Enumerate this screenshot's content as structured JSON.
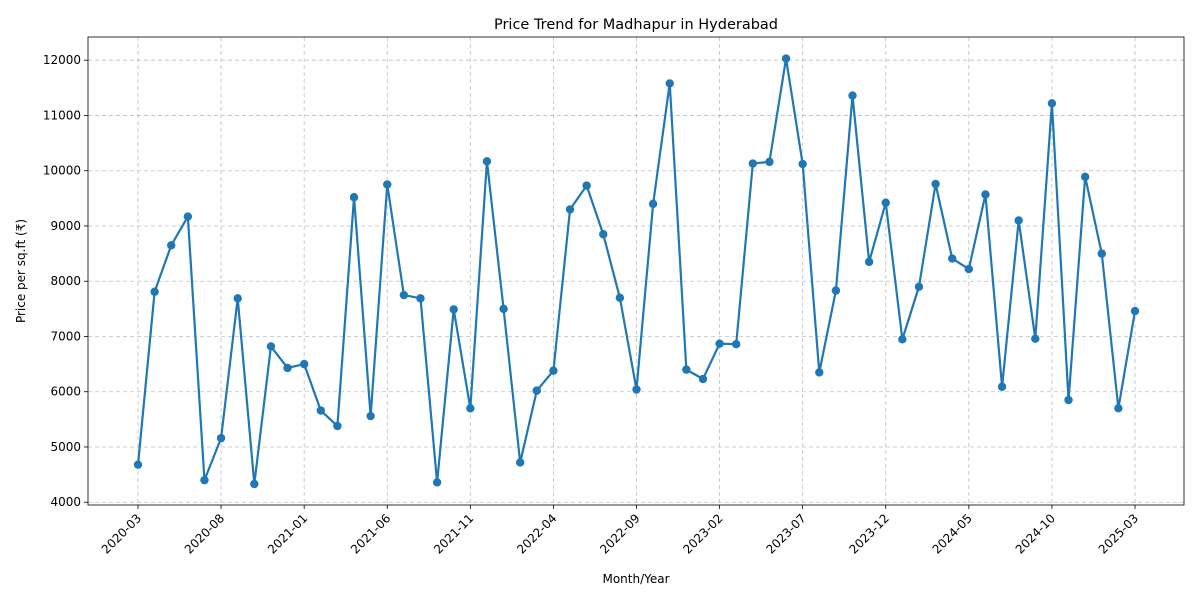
{
  "chart_data": {
    "type": "line",
    "title": "Price Trend for Madhapur in Hyderabad",
    "xlabel": "Month/Year",
    "ylabel": "Price per sq.ft (₹)",
    "x_tick_labels": [
      "2020-03",
      "2020-08",
      "2021-01",
      "2021-06",
      "2021-11",
      "2022-04",
      "2022-09",
      "2023-02",
      "2023-07",
      "2023-12",
      "2024-05",
      "2024-10",
      "2025-03"
    ],
    "y_ticks": [
      4000,
      5000,
      6000,
      7000,
      8000,
      9000,
      10000,
      11000,
      12000
    ],
    "ylim": [
      3950,
      12420
    ],
    "grid": true,
    "color": "#1f77b4",
    "x_start": "2020-03",
    "series": [
      {
        "x": [
          "2020-03",
          "2020-04",
          "2020-05",
          "2020-06",
          "2020-07",
          "2020-08",
          "2020-09",
          "2020-10",
          "2020-11",
          "2020-12",
          "2021-01",
          "2021-02",
          "2021-03",
          "2021-04",
          "2021-05",
          "2021-06",
          "2021-07",
          "2021-08",
          "2021-09",
          "2021-10",
          "2021-11",
          "2021-12",
          "2022-01",
          "2022-02",
          "2022-03",
          "2022-04",
          "2022-05",
          "2022-06",
          "2022-07",
          "2022-08",
          "2022-09",
          "2022-10",
          "2022-11",
          "2022-12",
          "2023-01",
          "2023-02",
          "2023-03",
          "2023-04",
          "2023-05",
          "2023-06",
          "2023-07",
          "2023-08",
          "2023-09",
          "2023-10",
          "2023-11",
          "2023-12",
          "2024-01",
          "2024-02",
          "2024-03",
          "2024-04",
          "2024-05",
          "2024-06",
          "2024-07",
          "2024-08",
          "2024-09",
          "2024-10",
          "2024-11",
          "2024-12",
          "2025-01",
          "2025-02",
          "2025-03"
        ],
        "values": [
          4680,
          7810,
          8650,
          9170,
          4400,
          5160,
          7690,
          4330,
          6820,
          6430,
          6500,
          5660,
          5380,
          9520,
          5560,
          9750,
          7750,
          7690,
          4360,
          7490,
          5700,
          10170,
          7500,
          4720,
          6020,
          6380,
          9300,
          9730,
          8850,
          7700,
          6040,
          9400,
          11580,
          6400,
          6230,
          6870,
          6860,
          10130,
          10160,
          12030,
          10120,
          6350,
          7830,
          11360,
          8350,
          9420,
          6950,
          7900,
          9760,
          8410,
          8220,
          9570,
          6090,
          9100,
          6960,
          11220,
          5850,
          9890,
          8500,
          5700,
          7460
        ]
      }
    ]
  }
}
